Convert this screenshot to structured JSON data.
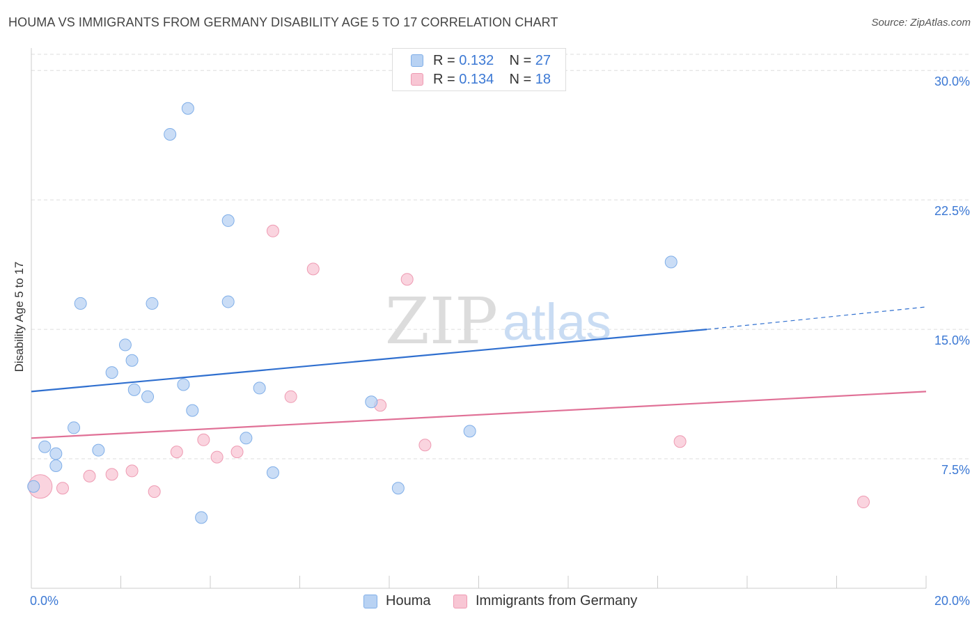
{
  "header": {
    "title": "HOUMA VS IMMIGRANTS FROM GERMANY DISABILITY AGE 5 TO 17 CORRELATION CHART",
    "source": "Source: ZipAtlas.com"
  },
  "watermark": {
    "zip": "ZIP",
    "atlas": "atlas"
  },
  "legend": {
    "houma": {
      "r_label": "R =",
      "r_value": "0.132",
      "n_label": "N =",
      "n_value": "27"
    },
    "germany": {
      "r_label": "R =",
      "r_value": "0.134",
      "n_label": "N =",
      "n_value": "18"
    }
  },
  "colors": {
    "houma_fill": "#b8d2f3",
    "houma_stroke": "#7faee8",
    "houma_line": "#2f6fcf",
    "germany_fill": "#f8c6d4",
    "germany_stroke": "#ee9ab2",
    "germany_line": "#e07096",
    "axis_label": "#3b78d4",
    "grid": "#dddddd"
  },
  "chart_data": {
    "type": "scatter",
    "xlabel": "",
    "ylabel": "Disability Age 5 to 17",
    "xlim": [
      0,
      20
    ],
    "ylim": [
      0,
      31.3
    ],
    "x_tick_labels": [
      {
        "value": 0,
        "label": "0.0%"
      },
      {
        "value": 20,
        "label": "20.0%"
      }
    ],
    "y_tick_labels": [
      {
        "value": 7.5,
        "label": "7.5%"
      },
      {
        "value": 15,
        "label": "15.0%"
      },
      {
        "value": 22.5,
        "label": "22.5%"
      },
      {
        "value": 30,
        "label": "30.0%"
      }
    ],
    "grid": true,
    "legend_position": "top-center",
    "series": [
      {
        "name": "Houma",
        "r": 0.132,
        "n": 27,
        "points": [
          [
            0.05,
            5.9
          ],
          [
            0.3,
            8.2
          ],
          [
            0.55,
            7.8
          ],
          [
            0.55,
            7.1
          ],
          [
            0.95,
            9.3
          ],
          [
            1.1,
            16.5
          ],
          [
            1.5,
            8.0
          ],
          [
            1.8,
            12.5
          ],
          [
            2.1,
            14.1
          ],
          [
            2.25,
            13.2
          ],
          [
            2.3,
            11.5
          ],
          [
            2.6,
            11.1
          ],
          [
            2.7,
            16.5
          ],
          [
            3.1,
            26.3
          ],
          [
            3.4,
            11.8
          ],
          [
            3.5,
            27.8
          ],
          [
            3.6,
            10.3
          ],
          [
            3.8,
            4.1
          ],
          [
            4.4,
            21.3
          ],
          [
            4.4,
            16.6
          ],
          [
            4.8,
            8.7
          ],
          [
            5.1,
            11.6
          ],
          [
            5.4,
            6.7
          ],
          [
            7.6,
            10.8
          ],
          [
            8.2,
            5.8
          ],
          [
            9.8,
            9.1
          ],
          [
            14.3,
            18.9
          ]
        ],
        "trend": {
          "x0": 0,
          "y0": 11.4,
          "x1": 15.1,
          "y1": 15.0,
          "dash_to_x": 20,
          "dash_to_y": 16.3
        }
      },
      {
        "name": "Immigrants from Germany",
        "r": 0.134,
        "n": 18,
        "points": [
          [
            0.2,
            5.9
          ],
          [
            0.7,
            5.8
          ],
          [
            1.3,
            6.5
          ],
          [
            1.8,
            6.6
          ],
          [
            2.25,
            6.8
          ],
          [
            2.75,
            5.6
          ],
          [
            3.25,
            7.9
          ],
          [
            3.85,
            8.6
          ],
          [
            4.15,
            7.6
          ],
          [
            4.6,
            7.9
          ],
          [
            5.4,
            20.7
          ],
          [
            5.8,
            11.1
          ],
          [
            6.3,
            18.5
          ],
          [
            7.8,
            10.6
          ],
          [
            8.4,
            17.9
          ],
          [
            8.8,
            8.3
          ],
          [
            14.5,
            8.5
          ],
          [
            18.6,
            5.0
          ]
        ],
        "trend": {
          "x0": 0,
          "y0": 8.7,
          "x1": 20,
          "y1": 11.4
        }
      }
    ]
  },
  "bottom_legend": {
    "houma": "Houma",
    "germany": "Immigrants from Germany"
  }
}
